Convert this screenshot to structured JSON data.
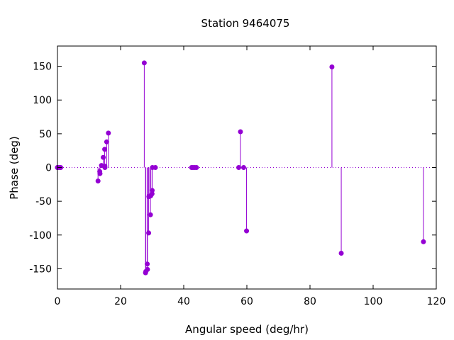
{
  "chart_data": {
    "type": "scatter",
    "style": "impulses-with-points",
    "title": "Station 9464075",
    "xlabel": "Angular speed (deg/hr)",
    "ylabel": "Phase (deg)",
    "xlim": [
      0,
      120
    ],
    "ylim": [
      -180,
      180
    ],
    "xticks": [
      "0",
      "20",
      "40",
      "60",
      "80",
      "100",
      "120"
    ],
    "xtick_values": [
      0,
      20,
      40,
      60,
      80,
      100,
      120
    ],
    "yticks": [
      "150",
      "100",
      "50",
      "0",
      "-50",
      "-100",
      "-150"
    ],
    "ytick_values": [
      150,
      100,
      50,
      0,
      -50,
      -100,
      -150
    ],
    "grid": false,
    "zero_line": "dotted",
    "color": "#9400d3",
    "series": [
      {
        "x": [
          0.0,
          0.04,
          0.08,
          0.16,
          0.54,
          1.02,
          12.85,
          13.4,
          13.47,
          13.94,
          14.5,
          14.96,
          15.0,
          15.04,
          15.59,
          16.14,
          27.5,
          27.9,
          28.0,
          28.44,
          28.51,
          28.9,
          28.98,
          29.46,
          29.53,
          29.96,
          30.0,
          30.08,
          31.02,
          42.5,
          42.93,
          43.48,
          44.03,
          57.42,
          57.97,
          58.98,
          59.9,
          86.95,
          89.9,
          115.94
        ],
        "y": [
          0,
          0,
          0,
          0,
          0,
          0,
          -20,
          -6,
          -9,
          3,
          15,
          27,
          2,
          0,
          38,
          51,
          155,
          -156,
          -154,
          -143,
          -151,
          -97,
          -43,
          -70,
          -42,
          -39,
          -34,
          0,
          0,
          0,
          0,
          0,
          0,
          0,
          53,
          0,
          -94,
          149,
          -127,
          -110
        ]
      }
    ]
  }
}
